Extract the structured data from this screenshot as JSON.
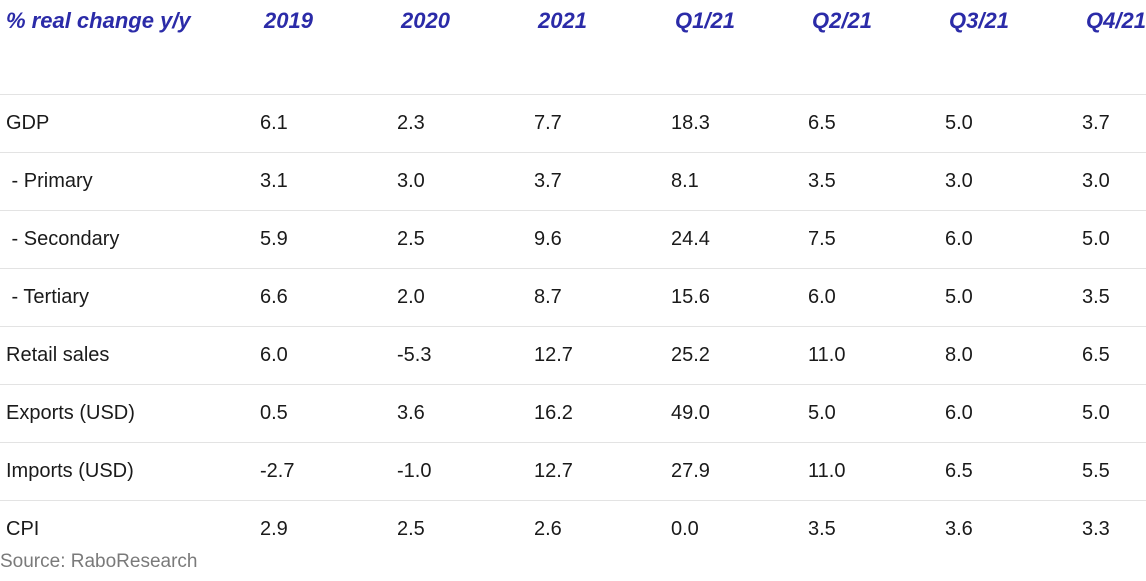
{
  "chart_data": {
    "type": "table",
    "header_label": "% real change y/y",
    "columns": [
      "2019",
      "2020",
      "2021",
      "Q1/21",
      "Q2/21",
      "Q3/21",
      "Q4/21"
    ],
    "rows": [
      {
        "label": "GDP",
        "values": [
          "6.1",
          "2.3",
          "7.7",
          "18.3",
          "6.5",
          "5.0",
          "3.7"
        ]
      },
      {
        "label": " - Primary",
        "values": [
          "3.1",
          "3.0",
          "3.7",
          "8.1",
          "3.5",
          "3.0",
          "3.0"
        ]
      },
      {
        "label": " - Secondary",
        "values": [
          "5.9",
          "2.5",
          "9.6",
          "24.4",
          "7.5",
          "6.0",
          "5.0"
        ]
      },
      {
        "label": " - Tertiary",
        "values": [
          "6.6",
          "2.0",
          "8.7",
          "15.6",
          "6.0",
          "5.0",
          "3.5"
        ]
      },
      {
        "label": "Retail sales",
        "values": [
          "6.0",
          "-5.3",
          "12.7",
          "25.2",
          "11.0",
          "8.0",
          "6.5"
        ]
      },
      {
        "label": "Exports (USD)",
        "values": [
          "0.5",
          "3.6",
          "16.2",
          "49.0",
          "5.0",
          "6.0",
          "5.0"
        ]
      },
      {
        "label": "Imports (USD)",
        "values": [
          "-2.7",
          "-1.0",
          "12.7",
          "27.9",
          "11.0",
          "6.5",
          "5.5"
        ]
      },
      {
        "label": "CPI",
        "values": [
          "2.9",
          "2.5",
          "2.6",
          "0.0",
          "3.5",
          "3.6",
          "3.3"
        ]
      }
    ],
    "source": "Source: RaboResearch",
    "header_color": "#2b2ba8"
  }
}
